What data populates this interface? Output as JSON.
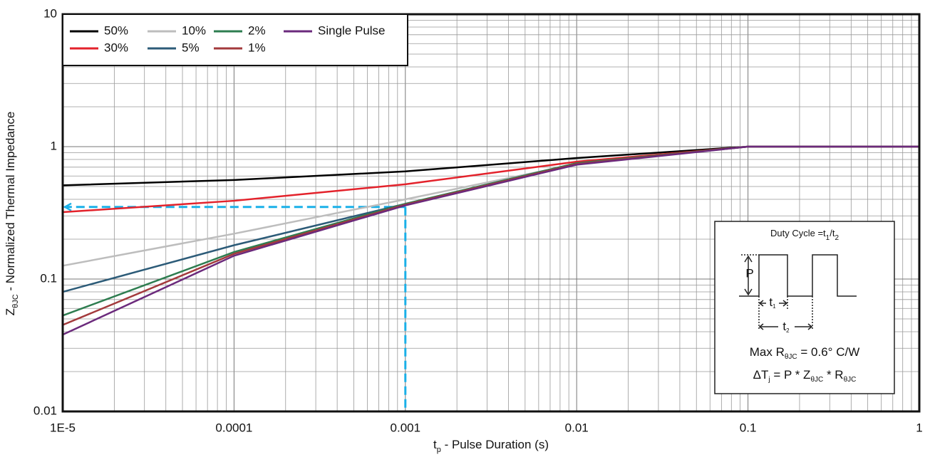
{
  "chart_data": {
    "type": "line",
    "x_label": [
      "t",
      "p",
      " - Pulse Duration (s)"
    ],
    "y_label": [
      "Z",
      "θJC",
      " - Normalized Thermal Impedance"
    ],
    "x": [
      1e-05,
      0.0001,
      0.001,
      0.01,
      0.1,
      1
    ],
    "series": [
      {
        "name": "50%",
        "color": "#000000",
        "values": [
          0.51,
          0.56,
          0.65,
          0.82,
          1,
          1
        ]
      },
      {
        "name": "30%",
        "color": "#e3222b",
        "values": [
          0.32,
          0.39,
          0.52,
          0.77,
          1,
          1
        ]
      },
      {
        "name": "10%",
        "color": "#bdbdbd",
        "values": [
          0.126,
          0.22,
          0.4,
          0.74,
          1,
          1
        ]
      },
      {
        "name": "5%",
        "color": "#2c5b78",
        "values": [
          0.08,
          0.18,
          0.37,
          0.75,
          1,
          1
        ]
      },
      {
        "name": "2%",
        "color": "#2e7d50",
        "values": [
          0.053,
          0.16,
          0.37,
          0.75,
          1,
          1
        ]
      },
      {
        "name": "1%",
        "color": "#a33a3c",
        "values": [
          0.045,
          0.155,
          0.365,
          0.74,
          1,
          1
        ]
      },
      {
        "name": "Single Pulse",
        "color": "#6b2a7c",
        "values": [
          0.038,
          0.15,
          0.36,
          0.73,
          1,
          1
        ]
      }
    ],
    "xlim": [
      1e-05,
      1
    ],
    "ylim": [
      0.01,
      10
    ],
    "xticks": [
      {
        "value": 1e-05,
        "label": "1E-5"
      },
      0.0001,
      0.001,
      0.01,
      0.1,
      1
    ],
    "yticks": [
      0.01,
      0.1,
      1,
      10
    ],
    "log_x": true,
    "log_y": true,
    "grid": true,
    "minor_grid": true,
    "legend_position": "upper-left",
    "annotation": {
      "x": 0.001,
      "y": 0.35,
      "color": "#1ab0e8"
    },
    "inset": {
      "duty_cycle": [
        "Duty Cycle =t",
        "1",
        "/t",
        "2"
      ],
      "pulse_label": "P",
      "t1": [
        "t",
        "1"
      ],
      "t2": [
        "t",
        "2"
      ],
      "max_r": [
        "Max R",
        "θJC",
        " = 0.6° C/W"
      ],
      "formula": [
        "ΔT",
        "j",
        " = P * Z",
        "θJC",
        " * R",
        "θJC"
      ]
    }
  }
}
